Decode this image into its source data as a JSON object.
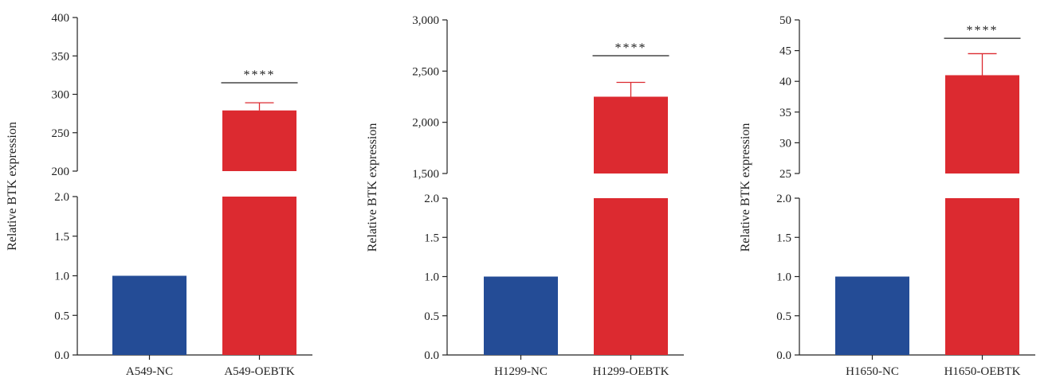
{
  "chart_data": [
    {
      "type": "bar",
      "ylabel": "Relative BTK expression",
      "categories": [
        "A549-NC",
        "A549-OEBTK"
      ],
      "values": [
        1.0,
        279
      ],
      "error_upper": [
        null,
        289
      ],
      "colors": [
        "#244c96",
        "#dc2a30"
      ],
      "broken_axis": {
        "lower": {
          "range": [
            0,
            2.0
          ],
          "ticks": [
            "0.0",
            "0.5",
            "1.0",
            "1.5",
            "2.0"
          ]
        },
        "upper": {
          "range": [
            200,
            400
          ],
          "ticks": [
            "200",
            "250",
            "300",
            "350",
            "400"
          ]
        }
      },
      "significance": {
        "label": "****",
        "from": "A549-NC",
        "to": "A549-OEBTK",
        "level": 315
      }
    },
    {
      "type": "bar",
      "ylabel": "Relative BTK expression",
      "categories": [
        "H1299-NC",
        "H1299-OEBTK"
      ],
      "values": [
        1.0,
        2250
      ],
      "error_upper": [
        null,
        2390
      ],
      "colors": [
        "#244c96",
        "#dc2a30"
      ],
      "broken_axis": {
        "lower": {
          "range": [
            0,
            2.0
          ],
          "ticks": [
            "0.0",
            "0.5",
            "1.0",
            "1.5",
            "2.0"
          ]
        },
        "upper": {
          "range": [
            1500,
            3000
          ],
          "ticks": [
            "1,500",
            "2,000",
            "2,500",
            "3,000"
          ]
        }
      },
      "significance": {
        "label": "****",
        "from": "H1299-NC",
        "to": "H1299-OEBTK",
        "level": 2650
      }
    },
    {
      "type": "bar",
      "ylabel": "Relative BTK expression",
      "categories": [
        "H1650-NC",
        "H1650-OEBTK"
      ],
      "values": [
        1.0,
        41
      ],
      "error_upper": [
        null,
        44.5
      ],
      "colors": [
        "#244c96",
        "#dc2a30"
      ],
      "broken_axis": {
        "lower": {
          "range": [
            0,
            2.0
          ],
          "ticks": [
            "0.0",
            "0.5",
            "1.0",
            "1.5",
            "2.0"
          ]
        },
        "upper": {
          "range": [
            25,
            50
          ],
          "ticks": [
            "25",
            "30",
            "35",
            "40",
            "45",
            "50"
          ]
        }
      },
      "significance": {
        "label": "****",
        "from": "H1650-NC",
        "to": "H1650-OEBTK",
        "level": 47
      }
    }
  ]
}
